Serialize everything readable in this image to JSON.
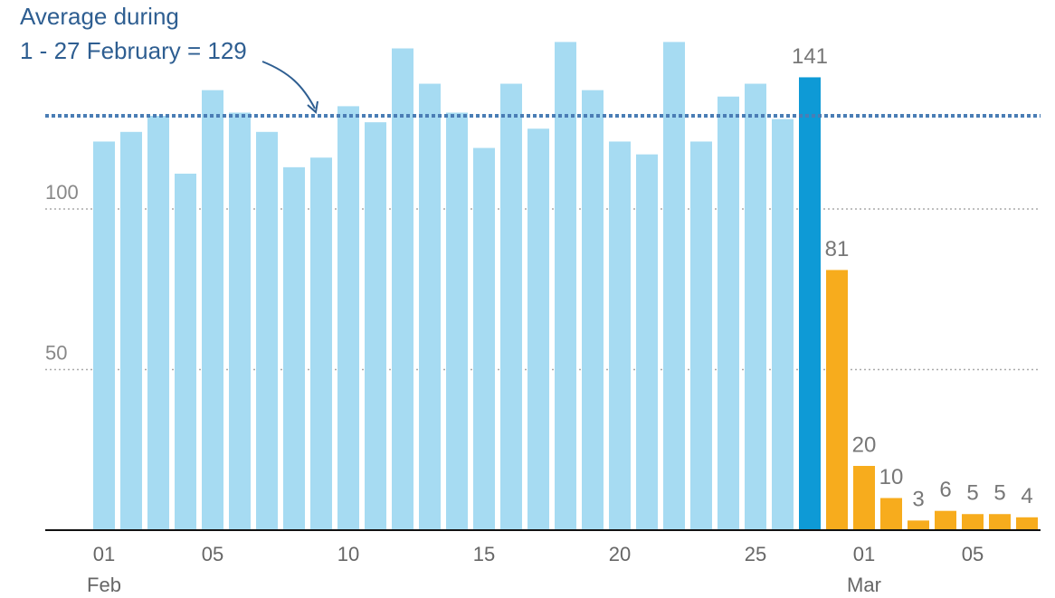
{
  "chart_data": {
    "type": "bar",
    "categories": [
      "01",
      null,
      null,
      null,
      "05",
      null,
      null,
      null,
      null,
      "10",
      null,
      null,
      null,
      null,
      "15",
      null,
      null,
      null,
      null,
      "20",
      null,
      null,
      null,
      null,
      "25",
      null,
      null,
      null,
      "01",
      null,
      null,
      null,
      "05",
      null,
      null
    ],
    "category_months": [
      "Feb",
      null,
      null,
      null,
      null,
      null,
      null,
      null,
      null,
      null,
      null,
      null,
      null,
      null,
      null,
      null,
      null,
      null,
      null,
      null,
      null,
      null,
      null,
      null,
      null,
      null,
      null,
      null,
      "Mar",
      null,
      null,
      null,
      null,
      null,
      null
    ],
    "series": [
      {
        "color": "#a6dbf2",
        "show_labels": false,
        "values": [
          121,
          124,
          129,
          111,
          137,
          130,
          124,
          113,
          116,
          132,
          127,
          150,
          139,
          130,
          119,
          139,
          125,
          152,
          137,
          121,
          117,
          152,
          121,
          135,
          139,
          128,
          null,
          null,
          null,
          null,
          null,
          null,
          null,
          null,
          null
        ]
      },
      {
        "color": "#0e9ad6",
        "show_labels": true,
        "values": [
          null,
          null,
          null,
          null,
          null,
          null,
          null,
          null,
          null,
          null,
          null,
          null,
          null,
          null,
          null,
          null,
          null,
          null,
          null,
          null,
          null,
          null,
          null,
          null,
          null,
          null,
          141,
          null,
          null,
          null,
          null,
          null,
          null,
          null,
          null
        ]
      },
      {
        "color": "#f7ac1d",
        "show_labels": true,
        "values": [
          null,
          null,
          null,
          null,
          null,
          null,
          null,
          null,
          null,
          null,
          null,
          null,
          null,
          null,
          null,
          null,
          null,
          null,
          null,
          null,
          null,
          null,
          null,
          null,
          null,
          null,
          null,
          81,
          20,
          10,
          3,
          6,
          5,
          5,
          4
        ]
      }
    ],
    "reference_line": {
      "value": 129,
      "color": "#4a7db5",
      "label": [
        "Average during",
        "1 - 27 February = 129"
      ]
    },
    "ylim": [
      0,
      160
    ],
    "yticks": [
      50,
      100
    ],
    "grid": true
  }
}
